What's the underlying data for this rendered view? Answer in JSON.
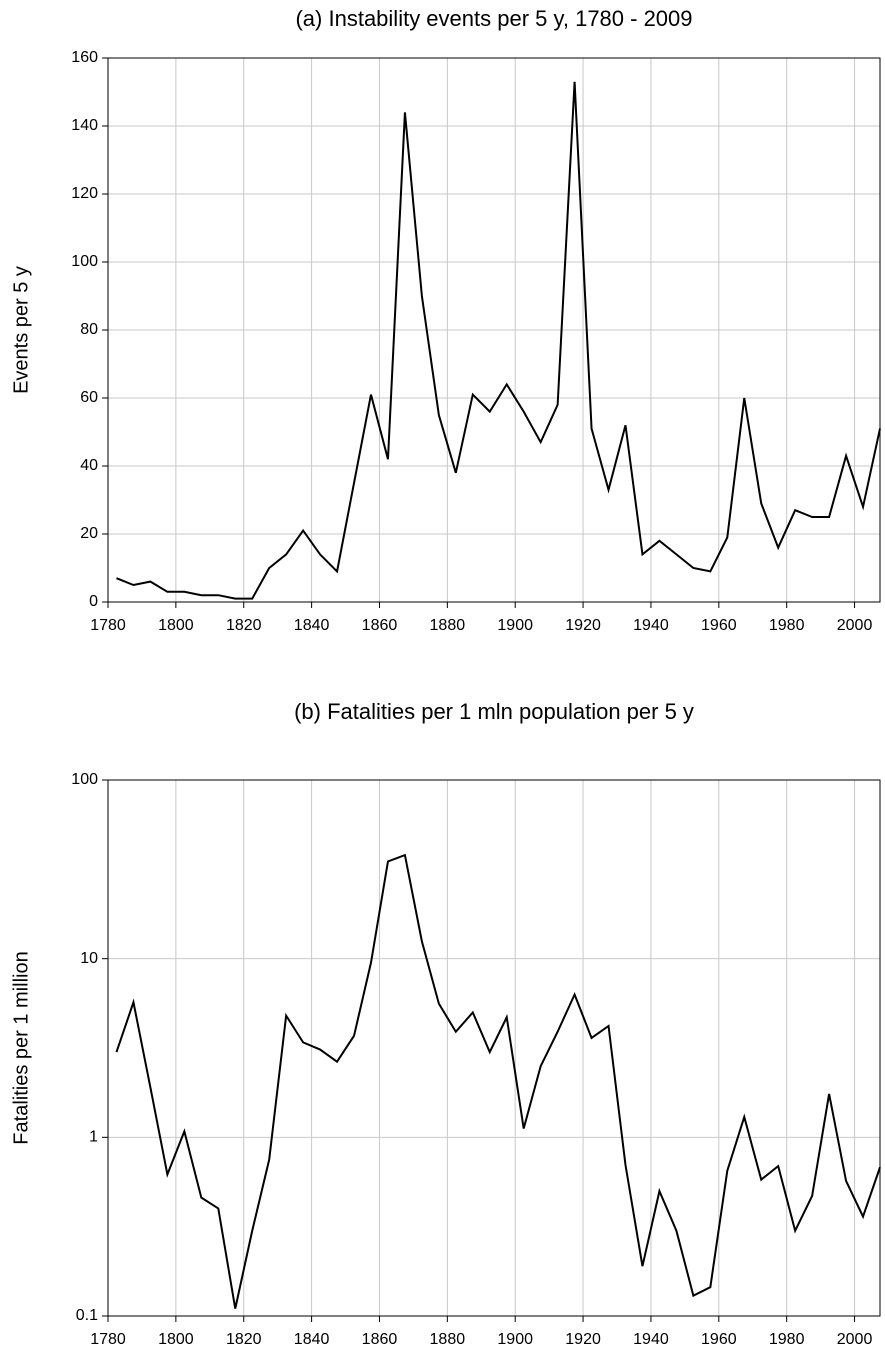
{
  "chart_data": [
    {
      "type": "line",
      "title": "(a) Instability events per 5 y, 1780 - 2009",
      "y_label": "Events per 5 y",
      "x": [
        1782.5,
        1787.5,
        1792.5,
        1797.5,
        1802.5,
        1807.5,
        1812.5,
        1817.5,
        1822.5,
        1827.5,
        1832.5,
        1837.5,
        1842.5,
        1847.5,
        1852.5,
        1857.5,
        1862.5,
        1867.5,
        1872.5,
        1877.5,
        1882.5,
        1887.5,
        1892.5,
        1897.5,
        1902.5,
        1907.5,
        1912.5,
        1917.5,
        1922.5,
        1927.5,
        1932.5,
        1937.5,
        1942.5,
        1947.5,
        1952.5,
        1957.5,
        1962.5,
        1967.5,
        1972.5,
        1977.5,
        1982.5,
        1987.5,
        1992.5,
        1997.5,
        2002.5,
        2007.5
      ],
      "values": [
        7,
        5,
        6,
        3,
        3,
        2,
        2,
        1,
        1,
        10,
        14,
        21,
        14,
        9,
        35,
        61,
        42,
        144,
        90,
        55,
        38,
        61,
        56,
        64,
        56,
        47,
        58,
        153,
        51,
        33,
        52,
        14,
        18,
        14,
        10,
        9,
        19,
        60,
        29,
        16,
        27,
        25,
        25,
        43,
        28,
        51
      ],
      "color": "#000000",
      "xlim": [
        1780,
        2007.5
      ],
      "xticks": [
        1780,
        1800,
        1820,
        1840,
        1860,
        1880,
        1900,
        1920,
        1940,
        1960,
        1980,
        2000
      ],
      "ylim": [
        0,
        160
      ],
      "yticks": [
        0,
        20,
        40,
        60,
        80,
        100,
        120,
        140,
        160
      ],
      "grid": true,
      "log_y": false
    },
    {
      "type": "line",
      "title": "(b) Fatalities per 1 mln population per 5 y",
      "y_label": "Fatalities per 1 million",
      "x": [
        1782.5,
        1787.5,
        1792.5,
        1797.5,
        1802.5,
        1807.5,
        1812.5,
        1817.5,
        1822.5,
        1827.5,
        1832.5,
        1837.5,
        1842.5,
        1847.5,
        1852.5,
        1857.5,
        1862.5,
        1867.5,
        1872.5,
        1877.5,
        1882.5,
        1887.5,
        1892.5,
        1897.5,
        1902.5,
        1907.5,
        1912.5,
        1917.5,
        1922.5,
        1927.5,
        1932.5,
        1937.5,
        1942.5,
        1947.5,
        1952.5,
        1957.5,
        1962.5,
        1967.5,
        1972.5,
        1977.5,
        1982.5,
        1987.5,
        1992.5,
        1997.5,
        2002.5,
        2007.5
      ],
      "values": [
        3.0,
        5.7,
        1.9,
        0.62,
        1.08,
        0.46,
        0.4,
        0.11,
        0.3,
        0.75,
        4.8,
        3.4,
        3.1,
        2.65,
        3.7,
        9.5,
        35,
        38,
        12.5,
        5.6,
        3.9,
        5.0,
        3.0,
        4.7,
        1.12,
        2.5,
        3.9,
        6.3,
        3.6,
        4.2,
        0.7,
        0.19,
        0.5,
        0.3,
        0.13,
        0.145,
        0.65,
        1.3,
        0.58,
        0.69,
        0.3,
        0.47,
        1.75,
        0.57,
        0.36,
        0.68
      ],
      "color": "#000000",
      "xlim": [
        1780,
        2007.5
      ],
      "xticks": [
        1780,
        1800,
        1820,
        1840,
        1860,
        1880,
        1900,
        1920,
        1940,
        1960,
        1980,
        2000
      ],
      "ylim": [
        0.1,
        100
      ],
      "yticks": [
        0.1,
        1,
        10,
        100
      ],
      "grid": true,
      "log_y": true
    }
  ]
}
